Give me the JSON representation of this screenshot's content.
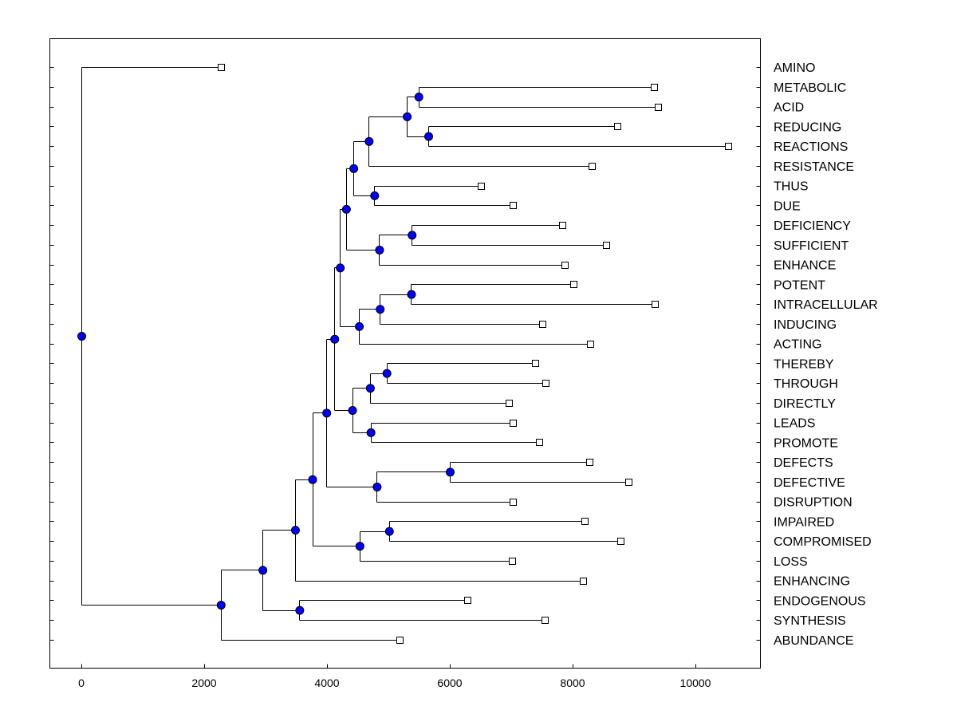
{
  "chart_data": {
    "type": "dendrogram",
    "orientation": "horizontal",
    "title": "",
    "xlabel": "",
    "ylabel": "",
    "xlim": [
      -500,
      11500
    ],
    "x_ticks": [
      0,
      2000,
      4000,
      6000,
      8000,
      10000
    ],
    "x_tick_labels": [
      "0",
      "2000",
      "4000",
      "6000",
      "8000",
      "10000"
    ],
    "node_color": "#0000ff",
    "leaves": [
      {
        "label": "AMINO",
        "value": 2270
      },
      {
        "label": "METABOLIC",
        "value": 9330
      },
      {
        "label": "ACID",
        "value": 9390
      },
      {
        "label": "REDUCING",
        "value": 8730
      },
      {
        "label": "REACTIONS",
        "value": 10530
      },
      {
        "label": "RESISTANCE",
        "value": 8310
      },
      {
        "label": "THUS",
        "value": 6500
      },
      {
        "label": "DUE",
        "value": 7020
      },
      {
        "label": "DEFICIENCY",
        "value": 7830
      },
      {
        "label": "SUFFICIENT",
        "value": 8540
      },
      {
        "label": "ENHANCE",
        "value": 7870
      },
      {
        "label": "POTENT",
        "value": 8010
      },
      {
        "label": "INTRACELLULAR",
        "value": 9340
      },
      {
        "label": "INDUCING",
        "value": 7500
      },
      {
        "label": "ACTING",
        "value": 8290
      },
      {
        "label": "THEREBY",
        "value": 7390
      },
      {
        "label": "THROUGH",
        "value": 7560
      },
      {
        "label": "DIRECTLY",
        "value": 6960
      },
      {
        "label": "LEADS",
        "value": 7020
      },
      {
        "label": "PROMOTE",
        "value": 7460
      },
      {
        "label": "DEFECTS",
        "value": 8270
      },
      {
        "label": "DEFECTIVE",
        "value": 8910
      },
      {
        "label": "DISRUPTION",
        "value": 7030
      },
      {
        "label": "IMPAIRED",
        "value": 8190
      },
      {
        "label": "COMPROMISED",
        "value": 8780
      },
      {
        "label": "LOSS",
        "value": 7010
      },
      {
        "label": "ENHANCING",
        "value": 8170
      },
      {
        "label": "ENDOGENOUS",
        "value": 6280
      },
      {
        "label": "SYNTHESIS",
        "value": 7550
      },
      {
        "label": "ABUNDANCE",
        "value": 5180
      }
    ],
    "nodes": [
      {
        "id": "n1",
        "value": 5490,
        "children": [
          1,
          2
        ]
      },
      {
        "id": "n2",
        "value": 5650,
        "children": [
          3,
          4
        ]
      },
      {
        "id": "n3",
        "value": 5300,
        "children": [
          "n1",
          "n2"
        ]
      },
      {
        "id": "n4",
        "value": 4680,
        "children": [
          "n3",
          5
        ]
      },
      {
        "id": "n5",
        "value": 4770,
        "children": [
          6,
          7
        ]
      },
      {
        "id": "n6",
        "value": 4430,
        "children": [
          "n4",
          "n5"
        ]
      },
      {
        "id": "n7",
        "value": 5380,
        "children": [
          8,
          9
        ]
      },
      {
        "id": "n8",
        "value": 4850,
        "children": [
          "n7",
          10
        ]
      },
      {
        "id": "n9",
        "value": 4310,
        "children": [
          "n6",
          "n8"
        ]
      },
      {
        "id": "n10",
        "value": 5370,
        "children": [
          11,
          12
        ]
      },
      {
        "id": "n11",
        "value": 4860,
        "children": [
          "n10",
          13
        ]
      },
      {
        "id": "n12",
        "value": 4520,
        "children": [
          "n11",
          14
        ]
      },
      {
        "id": "n13",
        "value": 4210,
        "children": [
          "n9",
          "n12"
        ]
      },
      {
        "id": "n14",
        "value": 4970,
        "children": [
          15,
          16
        ]
      },
      {
        "id": "n15",
        "value": 4700,
        "children": [
          "n14",
          17
        ]
      },
      {
        "id": "n16",
        "value": 4710,
        "children": [
          18,
          19
        ]
      },
      {
        "id": "n17",
        "value": 4410,
        "children": [
          "n15",
          "n16"
        ]
      },
      {
        "id": "n18",
        "value": 4120,
        "children": [
          "n13",
          "n17"
        ]
      },
      {
        "id": "n19",
        "value": 6000,
        "children": [
          20,
          21
        ]
      },
      {
        "id": "n20",
        "value": 4810,
        "children": [
          "n19",
          22
        ]
      },
      {
        "id": "n21",
        "value": 3990,
        "children": [
          "n18",
          "n20"
        ]
      },
      {
        "id": "n22",
        "value": 5010,
        "children": [
          23,
          24
        ]
      },
      {
        "id": "n23",
        "value": 4530,
        "children": [
          "n22",
          25
        ]
      },
      {
        "id": "n24",
        "value": 3760,
        "children": [
          "n21",
          "n23"
        ]
      },
      {
        "id": "n25",
        "value": 3480,
        "children": [
          "n24",
          26
        ]
      },
      {
        "id": "n26",
        "value": 3550,
        "children": [
          27,
          28
        ]
      },
      {
        "id": "n27",
        "value": 2950,
        "children": [
          "n25",
          "n26"
        ]
      },
      {
        "id": "n28",
        "value": 2270,
        "children": [
          "n27",
          29
        ]
      },
      {
        "id": "root",
        "value": 0,
        "children": [
          0,
          "n28"
        ]
      }
    ]
  }
}
